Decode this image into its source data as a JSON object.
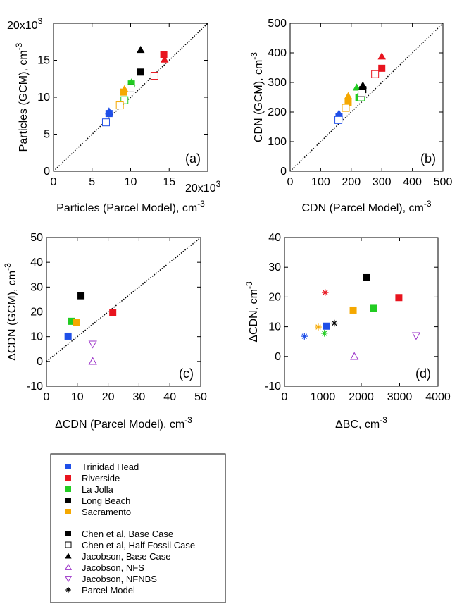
{
  "colors": {
    "trinidad": "#1f4fe8",
    "riverside": "#e8141e",
    "lajolla": "#22cc22",
    "longbeach": "#000000",
    "sacramento": "#f5a800",
    "nfs": "#9b30c8"
  },
  "chart_data": [
    {
      "type": "scatter",
      "panel_label": "(a)",
      "xlabel": "Particles (Parcel Model), cm",
      "xlabel_sup": "-3",
      "ylabel": "Particles (GCM), cm",
      "ylabel_sup": "-3",
      "xlim": [
        0,
        20000
      ],
      "ylim": [
        0,
        20000
      ],
      "xticks": [
        0,
        5000,
        10000,
        15000
      ],
      "xticklabels": [
        "0",
        "5",
        "10",
        "15"
      ],
      "yticks": [
        0,
        5000,
        10000,
        15000
      ],
      "yticklabels": [
        "0",
        "5",
        "10",
        "15"
      ],
      "x_multiplier": "20x10",
      "x_multiplier_sup": "3",
      "y_multiplier": "20x10",
      "y_multiplier_sup": "3",
      "one_to_one_line": true,
      "points": [
        {
          "site": "trinidad",
          "study": "chen-base",
          "x": 7200,
          "y": 7800
        },
        {
          "site": "trinidad",
          "study": "chen-half",
          "x": 6800,
          "y": 6600
        },
        {
          "site": "trinidad",
          "study": "jacobson-base",
          "x": 7200,
          "y": 8100
        },
        {
          "site": "riverside",
          "study": "chen-base",
          "x": 14300,
          "y": 15800
        },
        {
          "site": "riverside",
          "study": "chen-half",
          "x": 13100,
          "y": 12900
        },
        {
          "site": "riverside",
          "study": "jacobson-base",
          "x": 14400,
          "y": 15100
        },
        {
          "site": "lajolla",
          "study": "chen-base",
          "x": 10100,
          "y": 11800
        },
        {
          "site": "lajolla",
          "study": "chen-half",
          "x": 9200,
          "y": 9600
        },
        {
          "site": "lajolla",
          "study": "jacobson-base",
          "x": 10100,
          "y": 12000
        },
        {
          "site": "longbeach",
          "study": "chen-base",
          "x": 11300,
          "y": 13400
        },
        {
          "site": "longbeach",
          "study": "chen-half",
          "x": 10000,
          "y": 11200
        },
        {
          "site": "longbeach",
          "study": "jacobson-base",
          "x": 11300,
          "y": 16400
        },
        {
          "site": "sacramento",
          "study": "chen-base",
          "x": 9100,
          "y": 10700
        },
        {
          "site": "sacramento",
          "study": "chen-half",
          "x": 8600,
          "y": 8900
        },
        {
          "site": "sacramento",
          "study": "jacobson-base",
          "x": 9200,
          "y": 11100
        }
      ]
    },
    {
      "type": "scatter",
      "panel_label": "(b)",
      "xlabel": "CDN (Parcel Model), cm",
      "xlabel_sup": "-3",
      "ylabel": "CDN (GCM), cm",
      "ylabel_sup": "-3",
      "xlim": [
        0,
        500
      ],
      "ylim": [
        0,
        500
      ],
      "xticks": [
        0,
        100,
        200,
        300,
        400,
        500
      ],
      "xticklabels": [
        "0",
        "100",
        "200",
        "300",
        "400",
        "500"
      ],
      "yticks": [
        0,
        100,
        200,
        300,
        400,
        500
      ],
      "yticklabels": [
        "0",
        "100",
        "200",
        "300",
        "400",
        "500"
      ],
      "one_to_one_line": true,
      "points": [
        {
          "site": "trinidad",
          "study": "chen-base",
          "x": 160,
          "y": 185
        },
        {
          "site": "trinidad",
          "study": "chen-half",
          "x": 158,
          "y": 173
        },
        {
          "site": "trinidad",
          "study": "jacobson-base",
          "x": 160,
          "y": 195
        },
        {
          "site": "riverside",
          "study": "chen-base",
          "x": 300,
          "y": 348
        },
        {
          "site": "riverside",
          "study": "chen-half",
          "x": 278,
          "y": 328
        },
        {
          "site": "riverside",
          "study": "jacobson-base",
          "x": 300,
          "y": 388
        },
        {
          "site": "lajolla",
          "study": "chen-base",
          "x": 225,
          "y": 248
        },
        {
          "site": "lajolla",
          "study": "chen-half",
          "x": 232,
          "y": 250
        },
        {
          "site": "lajolla",
          "study": "jacobson-base",
          "x": 218,
          "y": 283
        },
        {
          "site": "longbeach",
          "study": "chen-base",
          "x": 238,
          "y": 276
        },
        {
          "site": "longbeach",
          "study": "chen-half",
          "x": 234,
          "y": 264
        },
        {
          "site": "longbeach",
          "study": "jacobson-base",
          "x": 238,
          "y": 290
        },
        {
          "site": "sacramento",
          "study": "chen-base",
          "x": 190,
          "y": 232
        },
        {
          "site": "sacramento",
          "study": "chen-half",
          "x": 182,
          "y": 214
        },
        {
          "site": "sacramento",
          "study": "jacobson-base",
          "x": 190,
          "y": 254
        }
      ]
    },
    {
      "type": "scatter",
      "panel_label": "(c)",
      "xlabel": "ΔCDN (Parcel Model), cm",
      "xlabel_sup": "-3",
      "ylabel": "ΔCDN (GCM), cm",
      "ylabel_sup": "-3",
      "xlim": [
        0,
        50
      ],
      "ylim": [
        -10,
        50
      ],
      "xticks": [
        0,
        10,
        20,
        30,
        40,
        50
      ],
      "xticklabels": [
        "0",
        "10",
        "20",
        "30",
        "40",
        "50"
      ],
      "yticks": [
        -10,
        0,
        10,
        20,
        30,
        40,
        50
      ],
      "yticklabels": [
        "-10",
        "0",
        "10",
        "20",
        "30",
        "40",
        "50"
      ],
      "one_to_one_line": true,
      "points": [
        {
          "site": "trinidad",
          "study": "chen-base",
          "x": 7,
          "y": 10.2
        },
        {
          "site": "riverside",
          "study": "chen-base",
          "x": 21.5,
          "y": 19.8
        },
        {
          "site": "lajolla",
          "study": "chen-base",
          "x": 8,
          "y": 16.2
        },
        {
          "site": "longbeach",
          "study": "chen-base",
          "x": 11.2,
          "y": 26.5
        },
        {
          "site": "sacramento",
          "study": "chen-base",
          "x": 9.8,
          "y": 15.6
        },
        {
          "site": "nfs",
          "study": "jacobson-nfs",
          "x": 15,
          "y": 0
        },
        {
          "site": "nfs",
          "study": "jacobson-nfnbs",
          "x": 15,
          "y": 7
        }
      ]
    },
    {
      "type": "scatter",
      "panel_label": "(d)",
      "xlabel": "ΔBC, cm",
      "xlabel_sup": "-3",
      "ylabel": "ΔCDN, cm",
      "ylabel_sup": "-3",
      "xlim": [
        0,
        4000
      ],
      "ylim": [
        -10,
        40
      ],
      "xticks": [
        0,
        1000,
        2000,
        3000,
        4000
      ],
      "xticklabels": [
        "0",
        "1000",
        "2000",
        "3000",
        "4000"
      ],
      "yticks": [
        -10,
        0,
        10,
        20,
        30,
        40
      ],
      "yticklabels": [
        "-10",
        "0",
        "10",
        "20",
        "30",
        "40"
      ],
      "one_to_one_line": false,
      "points": [
        {
          "site": "trinidad",
          "study": "chen-base",
          "x": 1100,
          "y": 10.2
        },
        {
          "site": "riverside",
          "study": "chen-base",
          "x": 2980,
          "y": 19.8
        },
        {
          "site": "lajolla",
          "study": "chen-base",
          "x": 2330,
          "y": 16.2
        },
        {
          "site": "longbeach",
          "study": "chen-base",
          "x": 2130,
          "y": 26.5
        },
        {
          "site": "sacramento",
          "study": "chen-base",
          "x": 1790,
          "y": 15.6
        },
        {
          "site": "nfs",
          "study": "jacobson-nfs",
          "x": 1820,
          "y": 0
        },
        {
          "site": "nfs",
          "study": "jacobson-nfnbs",
          "x": 3430,
          "y": 7
        },
        {
          "site": "trinidad",
          "study": "parcel",
          "x": 520,
          "y": 6.8
        },
        {
          "site": "riverside",
          "study": "parcel",
          "x": 1060,
          "y": 21.5
        },
        {
          "site": "lajolla",
          "study": "parcel",
          "x": 1040,
          "y": 7.8
        },
        {
          "site": "longbeach",
          "study": "parcel",
          "x": 1300,
          "y": 11.2
        },
        {
          "site": "sacramento",
          "study": "parcel",
          "x": 880,
          "y": 9.9
        }
      ]
    }
  ],
  "legend": {
    "sites": [
      {
        "key": "trinidad",
        "label": "Trinidad Head"
      },
      {
        "key": "riverside",
        "label": "Riverside"
      },
      {
        "key": "lajolla",
        "label": "La Jolla"
      },
      {
        "key": "longbeach",
        "label": "Long Beach"
      },
      {
        "key": "sacramento",
        "label": "Sacramento"
      }
    ],
    "studies": [
      {
        "key": "chen-base",
        "marker": "square-filled",
        "label": "Chen et al, Base Case"
      },
      {
        "key": "chen-half",
        "marker": "square-open",
        "label": "Chen et al, Half Fossil Case"
      },
      {
        "key": "jacobson-base",
        "marker": "triangle-up-filled",
        "label": "Jacobson, Base Case"
      },
      {
        "key": "jacobson-nfs",
        "marker": "triangle-up-open",
        "label": "Jacobson, NFS"
      },
      {
        "key": "jacobson-nfnbs",
        "marker": "triangle-down-open",
        "label": "Jacobson, NFNBS"
      },
      {
        "key": "parcel",
        "marker": "asterisk",
        "label": "Parcel Model"
      }
    ]
  }
}
